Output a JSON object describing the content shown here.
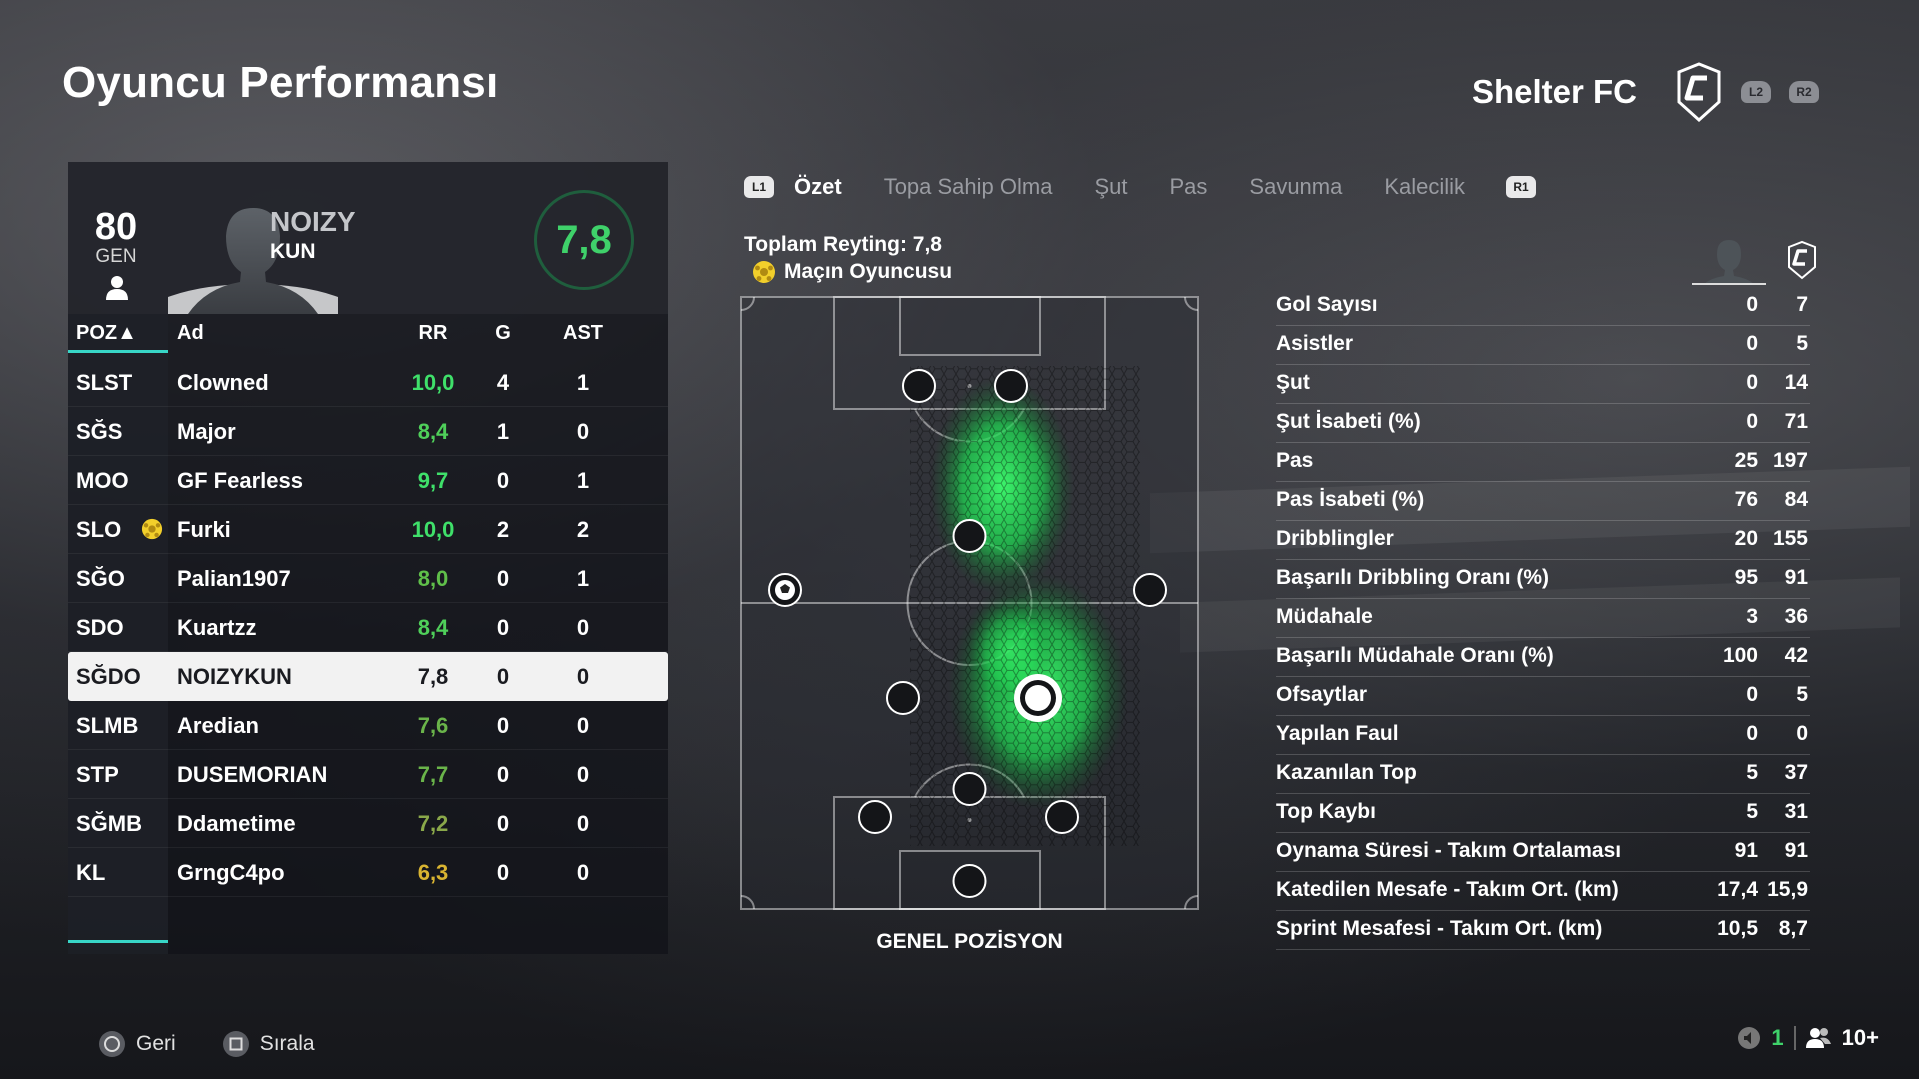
{
  "page": {
    "title": "Oyuncu Performansı"
  },
  "club": {
    "name": "Shelter FC",
    "l2": "L2",
    "r2": "R2"
  },
  "hero": {
    "ovr": "80",
    "pos": "GEN",
    "first_name": "NOIZY",
    "last_name": "KUN",
    "rating": "7,8"
  },
  "table": {
    "headers": {
      "pos": "POZ▲",
      "name": "Ad",
      "rr": "RR",
      "g": "G",
      "ast": "AST"
    },
    "rows": [
      {
        "pos": "SLST",
        "name": "Clowned",
        "rr": "10,0",
        "g": "4",
        "ast": "1",
        "rr_color": "#3fe06a",
        "motm": false
      },
      {
        "pos": "SĞS",
        "name": "Major",
        "rr": "8,4",
        "g": "1",
        "ast": "0",
        "rr_color": "#4fcf5a",
        "motm": false
      },
      {
        "pos": "MOO",
        "name": "GF Fearless",
        "rr": "9,7",
        "g": "0",
        "ast": "1",
        "rr_color": "#3fe06a",
        "motm": false
      },
      {
        "pos": "SLO",
        "name": "Furki",
        "rr": "10,0",
        "g": "2",
        "ast": "2",
        "rr_color": "#3fe06a",
        "motm": true
      },
      {
        "pos": "SĞO",
        "name": "Palian1907",
        "rr": "8,0",
        "g": "0",
        "ast": "1",
        "rr_color": "#5fbf4a",
        "motm": false
      },
      {
        "pos": "SDO",
        "name": "Kuartzz",
        "rr": "8,4",
        "g": "0",
        "ast": "0",
        "rr_color": "#4fcf5a",
        "motm": false
      },
      {
        "pos": "SĞDO",
        "name": "NOIZYKUN",
        "rr": "7,8",
        "g": "0",
        "ast": "0",
        "rr_color": "#1a1b20",
        "motm": false,
        "selected": true
      },
      {
        "pos": "SLMB",
        "name": "Aredian",
        "rr": "7,6",
        "g": "0",
        "ast": "0",
        "rr_color": "#6ab44a",
        "motm": false
      },
      {
        "pos": "STP",
        "name": "DUSEMORIAN",
        "rr": "7,7",
        "g": "0",
        "ast": "0",
        "rr_color": "#6ab44a",
        "motm": false
      },
      {
        "pos": "SĞMB",
        "name": "Ddametime",
        "rr": "7,2",
        "g": "0",
        "ast": "0",
        "rr_color": "#8aa84a",
        "motm": false
      },
      {
        "pos": "KL",
        "name": "GrngC4po",
        "rr": "6,3",
        "g": "0",
        "ast": "0",
        "rr_color": "#d9b431",
        "motm": false
      }
    ]
  },
  "tabs": {
    "l1": "L1",
    "r1": "R1",
    "items": [
      "Özet",
      "Topa Sahip Olma",
      "Şut",
      "Pas",
      "Savunma",
      "Kalecilik"
    ],
    "active": 0
  },
  "summary": {
    "total": "Toplam Reyting: 7,8",
    "motm": "Maçın Oyuncusu"
  },
  "pitch": {
    "label": "GENEL POZİSYON"
  },
  "stats": [
    {
      "label": "Gol Sayısı",
      "player": "0",
      "team": "7"
    },
    {
      "label": "Asistler",
      "player": "0",
      "team": "5"
    },
    {
      "label": "Şut",
      "player": "0",
      "team": "14"
    },
    {
      "label": "Şut İsabeti (%)",
      "player": "0",
      "team": "71"
    },
    {
      "label": "Pas",
      "player": "25",
      "team": "197"
    },
    {
      "label": "Pas İsabeti (%)",
      "player": "76",
      "team": "84"
    },
    {
      "label": "Dribblingler",
      "player": "20",
      "team": "155"
    },
    {
      "label": "Başarılı Dribbling Oranı (%)",
      "player": "95",
      "team": "91"
    },
    {
      "label": "Müdahale",
      "player": "3",
      "team": "36"
    },
    {
      "label": "Başarılı Müdahale Oranı (%)",
      "player": "100",
      "team": "42"
    },
    {
      "label": "Ofsaytlar",
      "player": "0",
      "team": "5"
    },
    {
      "label": "Yapılan Faul",
      "player": "0",
      "team": "0"
    },
    {
      "label": "Kazanılan Top",
      "player": "5",
      "team": "37"
    },
    {
      "label": "Top Kaybı",
      "player": "5",
      "team": "31"
    },
    {
      "label": "Oynama Süresi - Takım Ortalaması",
      "player": "91",
      "team": "91"
    },
    {
      "label": "Katedilen Mesafe - Takım Ort. (km)",
      "player": "17,4",
      "team": "15,9"
    },
    {
      "label": "Sprint Mesafesi - Takım Ort. (km)",
      "player": "10,5",
      "team": "8,7"
    }
  ],
  "footer": {
    "back": "Geri",
    "sort": "Sırala",
    "count": "1",
    "players": "10+"
  },
  "colors": {
    "accent": "#38d6c7",
    "green": "#3fd16a",
    "heat": "#2cff6a"
  }
}
